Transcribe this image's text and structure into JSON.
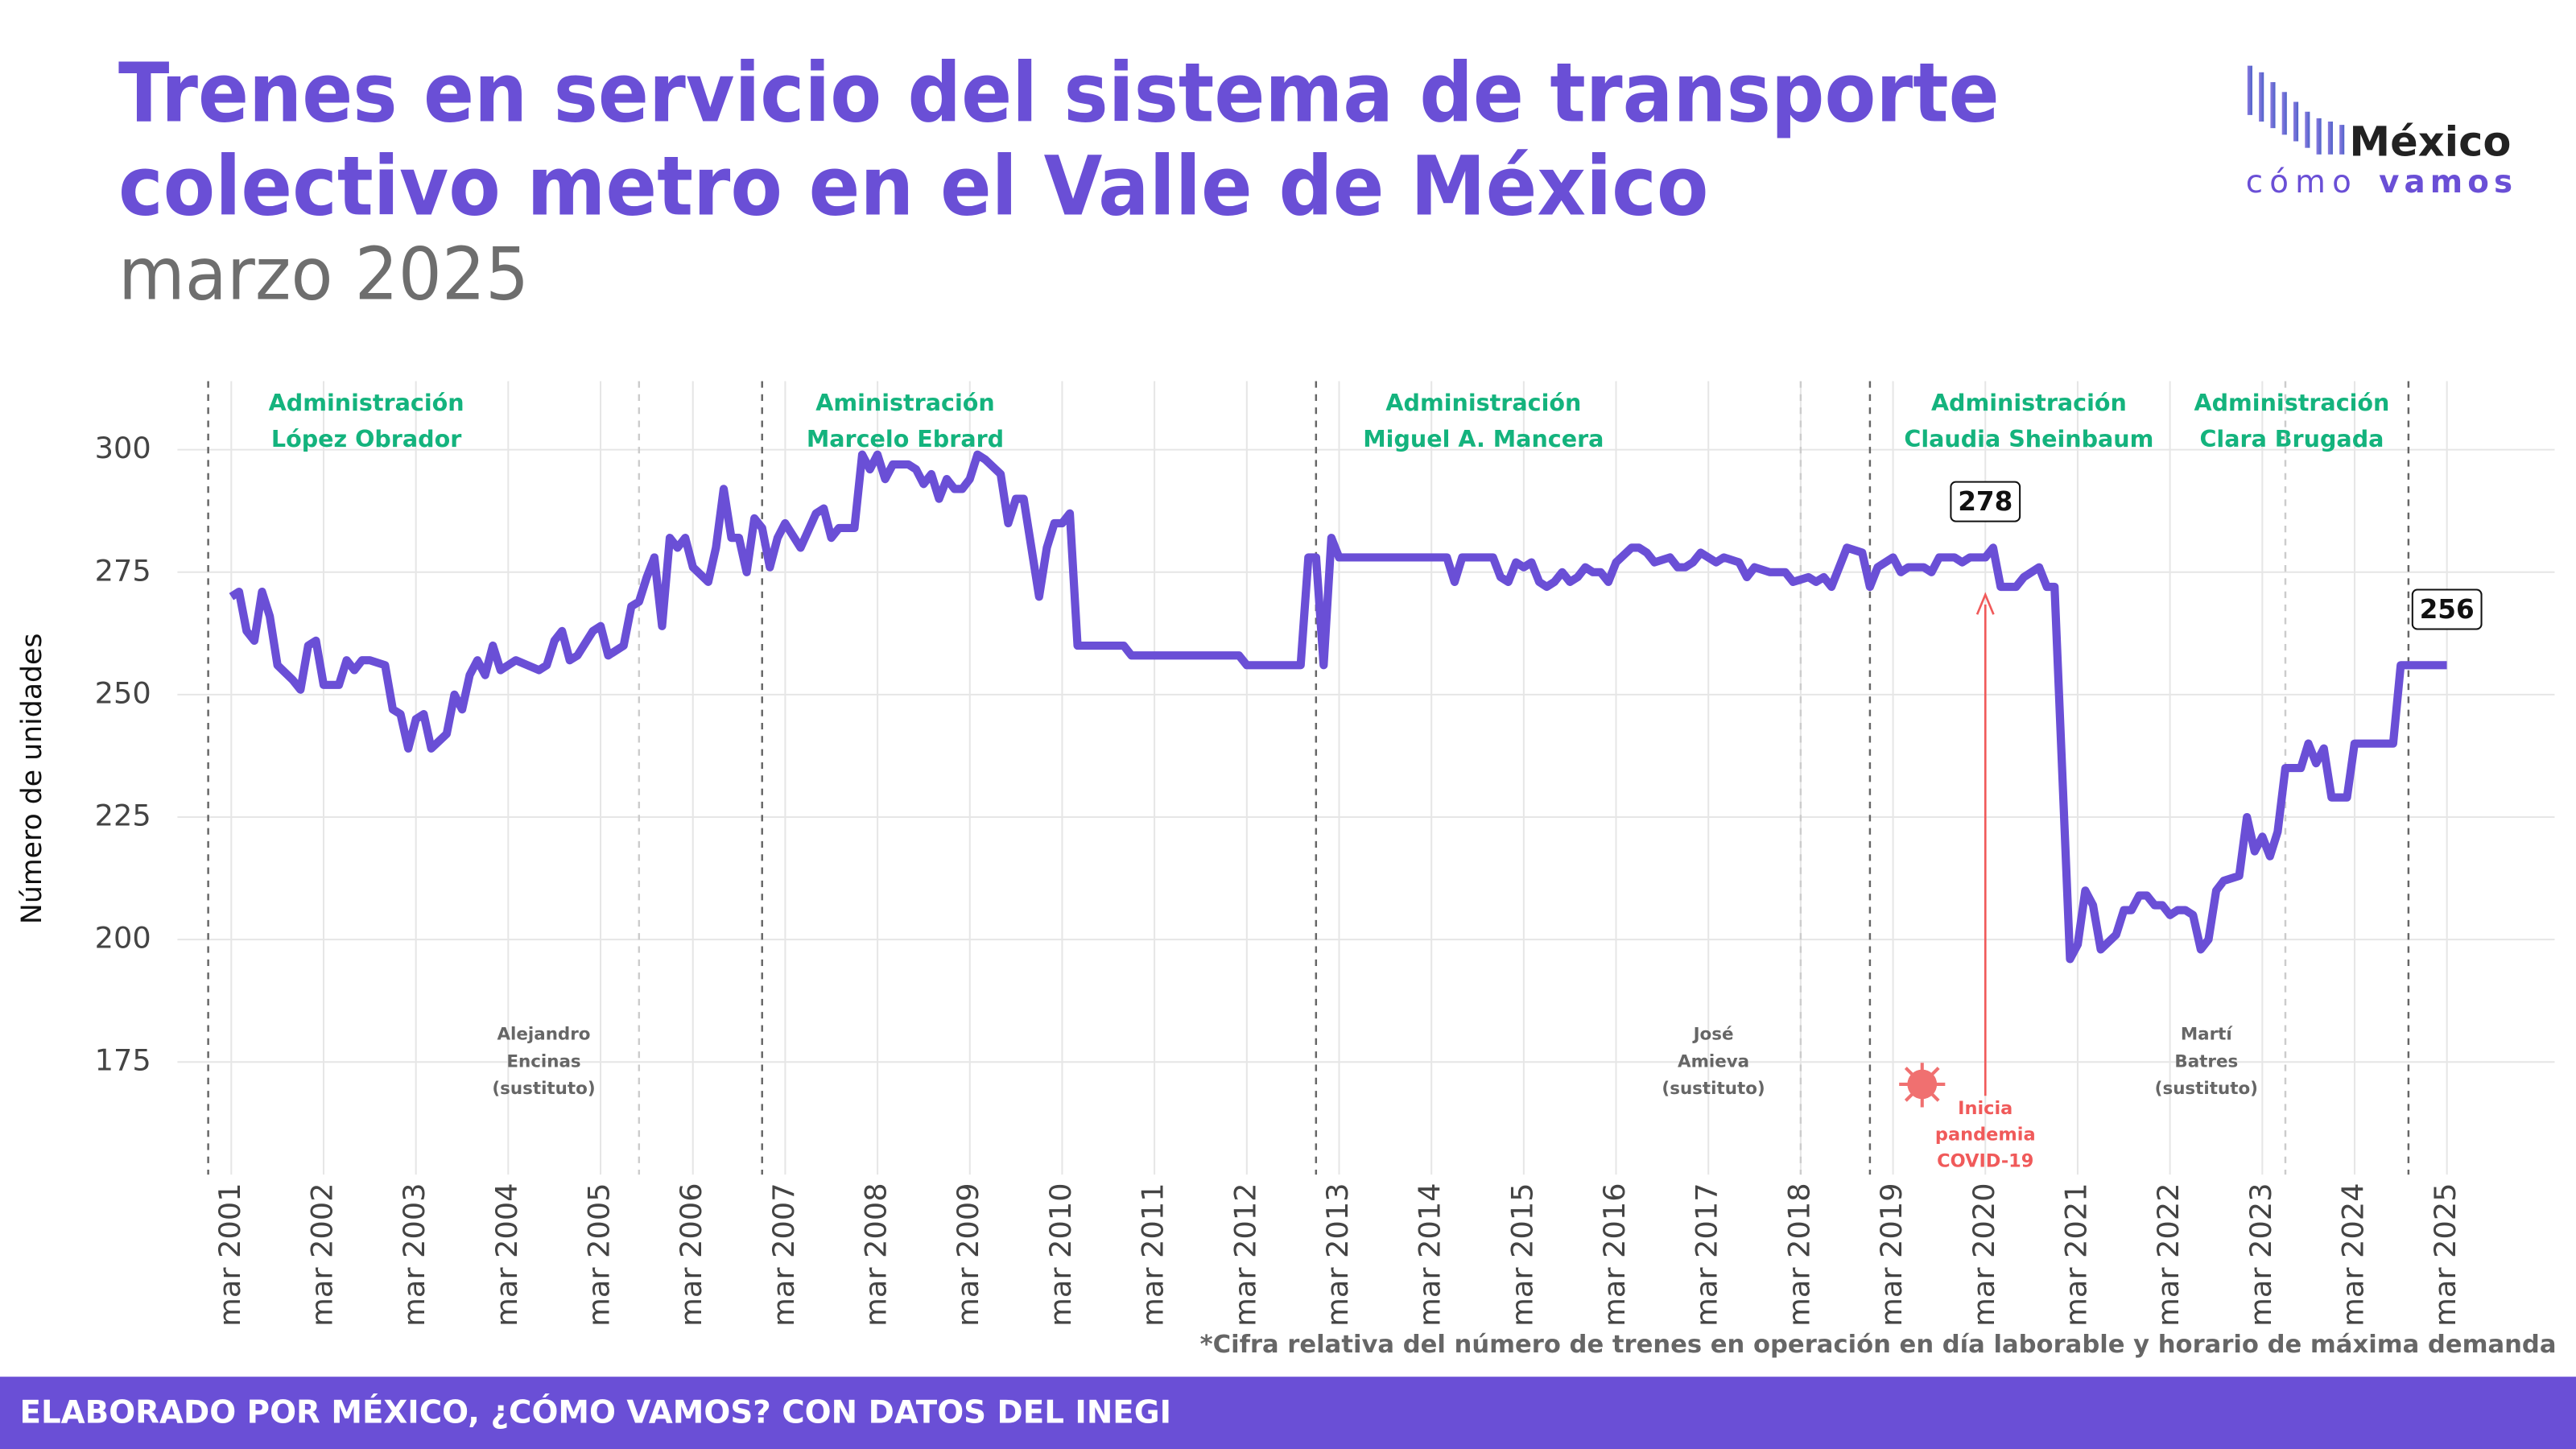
{
  "title": [
    "Trenes en servicio del sistema de transporte",
    "colectivo metro en el Valle de México"
  ],
  "subtitle": "marzo 2025",
  "logo": {
    "name": "México",
    "tag_a": "cómo",
    "tag_b": "vamos"
  },
  "note": "*Cifra relativa del número de trenes en operación en día laborable y horario de máxima demanda",
  "footer": "ELABORADO POR MÉXICO, ¿CÓMO VAMOS? CON DATOS DEL INEGI",
  "chart_data": {
    "type": "line",
    "ylabel": "Número de unidades",
    "color": "#6a4fd6",
    "grid": true,
    "xlim": [
      "2000-08",
      "2026-05"
    ],
    "ylim": [
      152,
      314
    ],
    "yticks": [
      175,
      200,
      225,
      250,
      275,
      300
    ],
    "xticks": [
      {
        "value": "2001-03",
        "label": "mar 2001"
      },
      {
        "value": "2002-03",
        "label": "mar 2002"
      },
      {
        "value": "2003-03",
        "label": "mar 2003"
      },
      {
        "value": "2004-03",
        "label": "mar 2004"
      },
      {
        "value": "2005-03",
        "label": "mar 2005"
      },
      {
        "value": "2006-03",
        "label": "mar 2006"
      },
      {
        "value": "2007-03",
        "label": "mar 2007"
      },
      {
        "value": "2008-03",
        "label": "mar 2008"
      },
      {
        "value": "2009-03",
        "label": "mar 2009"
      },
      {
        "value": "2010-03",
        "label": "mar 2010"
      },
      {
        "value": "2011-03",
        "label": "mar 2011"
      },
      {
        "value": "2012-03",
        "label": "mar 2012"
      },
      {
        "value": "2013-03",
        "label": "mar 2013"
      },
      {
        "value": "2014-03",
        "label": "mar 2014"
      },
      {
        "value": "2015-03",
        "label": "mar 2015"
      },
      {
        "value": "2016-03",
        "label": "mar 2016"
      },
      {
        "value": "2017-03",
        "label": "mar 2017"
      },
      {
        "value": "2018-03",
        "label": "mar 2018"
      },
      {
        "value": "2019-03",
        "label": "mar 2019"
      },
      {
        "value": "2020-03",
        "label": "mar 2020"
      },
      {
        "value": "2021-03",
        "label": "mar 2021"
      },
      {
        "value": "2022-03",
        "label": "mar 2022"
      },
      {
        "value": "2023-03",
        "label": "mar 2023"
      },
      {
        "value": "2024-03",
        "label": "mar 2024"
      },
      {
        "value": "2025-03",
        "label": "mar 2025"
      }
    ],
    "x": [
      "2001-03",
      "2001-04",
      "2001-05",
      "2001-06",
      "2001-07",
      "2001-08",
      "2001-09",
      "2001-11",
      "2001-12",
      "2002-01",
      "2002-02",
      "2002-03",
      "2002-05",
      "2002-06",
      "2002-07",
      "2002-08",
      "2002-09",
      "2002-11",
      "2002-12",
      "2003-01",
      "2003-02",
      "2003-03",
      "2003-04",
      "2003-05",
      "2003-07",
      "2003-08",
      "2003-09",
      "2003-10",
      "2003-11",
      "2003-12",
      "2004-01",
      "2004-02",
      "2004-04",
      "2004-07",
      "2004-08",
      "2004-09",
      "2004-10",
      "2004-11",
      "2004-12",
      "2005-02",
      "2005-03",
      "2005-04",
      "2005-06",
      "2005-07",
      "2005-08",
      "2005-09",
      "2005-10",
      "2005-11",
      "2005-12",
      "2006-01",
      "2006-02",
      "2006-03",
      "2006-05",
      "2006-06",
      "2006-07",
      "2006-08",
      "2006-09",
      "2006-10",
      "2006-11",
      "2006-12",
      "2007-01",
      "2007-02",
      "2007-03",
      "2007-05",
      "2007-07",
      "2007-08",
      "2007-09",
      "2007-10",
      "2007-12",
      "2008-01",
      "2008-02",
      "2008-03",
      "2008-04",
      "2008-05",
      "2008-07",
      "2008-08",
      "2008-09",
      "2008-10",
      "2008-11",
      "2008-12",
      "2009-01",
      "2009-02",
      "2009-03",
      "2009-04",
      "2009-05",
      "2009-07",
      "2009-08",
      "2009-09",
      "2009-10",
      "2009-12",
      "2010-01",
      "2010-02",
      "2010-03",
      "2010-04",
      "2010-05",
      "2010-11",
      "2010-12",
      "2012-02",
      "2012-03",
      "2012-10",
      "2012-11",
      "2012-12",
      "2013-01",
      "2013-02",
      "2013-03",
      "2014-05",
      "2014-06",
      "2014-07",
      "2014-11",
      "2014-12",
      "2015-01",
      "2015-02",
      "2015-03",
      "2015-04",
      "2015-05",
      "2015-06",
      "2015-07",
      "2015-08",
      "2015-09",
      "2015-10",
      "2015-11",
      "2015-12",
      "2016-01",
      "2016-02",
      "2016-03",
      "2016-05",
      "2016-06",
      "2016-07",
      "2016-08",
      "2016-10",
      "2016-11",
      "2016-12",
      "2017-01",
      "2017-02",
      "2017-04",
      "2017-05",
      "2017-07",
      "2017-08",
      "2017-09",
      "2017-11",
      "2018-01",
      "2018-02",
      "2018-04",
      "2018-05",
      "2018-06",
      "2018-07",
      "2018-08",
      "2018-09",
      "2018-11",
      "2018-12",
      "2019-01",
      "2019-02",
      "2019-03",
      "2019-04",
      "2019-05",
      "2019-07",
      "2019-08",
      "2019-09",
      "2019-11",
      "2019-12",
      "2020-01",
      "2020-03",
      "2020-04",
      "2020-05",
      "2020-07",
      "2020-08",
      "2020-10",
      "2020-11",
      "2020-12",
      "2021-02",
      "2021-03",
      "2021-04",
      "2021-05",
      "2021-06",
      "2021-08",
      "2021-09",
      "2021-10",
      "2021-11",
      "2021-12",
      "2022-01",
      "2022-02",
      "2022-03",
      "2022-04",
      "2022-05",
      "2022-06",
      "2022-07",
      "2022-08",
      "2022-09",
      "2022-10",
      "2022-12",
      "2023-01",
      "2023-02",
      "2023-03",
      "2023-04",
      "2023-05",
      "2023-06",
      "2023-08",
      "2023-09",
      "2023-10",
      "2023-11",
      "2023-12",
      "2024-02",
      "2024-03",
      "2024-08",
      "2024-09",
      "2025-03"
    ],
    "values": [
      270,
      271,
      263,
      261,
      271,
      266,
      256,
      253,
      251,
      260,
      261,
      252,
      252,
      257,
      255,
      257,
      257,
      256,
      247,
      246,
      239,
      245,
      246,
      239,
      242,
      250,
      247,
      254,
      257,
      254,
      260,
      255,
      257,
      255,
      256,
      261,
      263,
      257,
      258,
      263,
      264,
      258,
      260,
      268,
      269,
      274,
      278,
      264,
      282,
      280,
      282,
      276,
      273,
      280,
      292,
      282,
      282,
      275,
      286,
      284,
      276,
      282,
      285,
      280,
      287,
      288,
      282,
      284,
      284,
      299,
      296,
      299,
      294,
      297,
      297,
      296,
      293,
      295,
      290,
      294,
      292,
      292,
      294,
      299,
      298,
      295,
      285,
      290,
      290,
      270,
      280,
      285,
      285,
      287,
      260,
      260,
      258,
      258,
      256,
      256,
      278,
      278,
      256,
      282,
      278,
      278,
      273,
      278,
      278,
      274,
      273,
      277,
      276,
      277,
      273,
      272,
      273,
      275,
      273,
      274,
      276,
      275,
      275,
      273,
      277,
      280,
      280,
      279,
      277,
      278,
      276,
      276,
      277,
      279,
      277,
      278,
      277,
      274,
      276,
      275,
      275,
      273,
      274,
      273,
      274,
      272,
      276,
      280,
      279,
      272,
      276,
      277,
      278,
      275,
      276,
      276,
      275,
      278,
      278,
      277,
      278,
      278,
      280,
      272,
      272,
      274,
      276,
      272,
      272,
      196,
      199,
      210,
      207,
      198,
      201,
      206,
      206,
      209,
      209,
      207,
      207,
      205,
      206,
      206,
      205,
      198,
      200,
      210,
      212,
      213,
      225,
      218,
      221,
      217,
      222,
      235,
      235,
      240,
      236,
      239,
      229,
      229,
      240,
      240,
      256,
      256
    ],
    "callouts": [
      {
        "x": "2020-03",
        "value": 278
      },
      {
        "x": "2025-03",
        "value": 256
      }
    ],
    "administrations": [
      {
        "start": "2000-12",
        "lines": [
          "Administración",
          "López Obrador"
        ]
      },
      {
        "start": "2006-12",
        "lines": [
          "Aministración",
          "Marcelo Ebrard"
        ]
      },
      {
        "start": "2012-12",
        "lines": [
          "Administración",
          "Miguel A. Mancera"
        ]
      },
      {
        "start": "2018-12",
        "lines": [
          "Administración",
          "Claudia Sheinbaum"
        ]
      },
      {
        "start": "2024-10",
        "lines": [
          "Administración",
          "Clara Brugada"
        ]
      }
    ],
    "substitutes": [
      {
        "start": "2005-08",
        "lines": [
          "Alejandro",
          "Encinas",
          "(sustituto)"
        ]
      },
      {
        "start": "2018-03",
        "lines": [
          "José",
          "Amieva",
          "(sustituto)"
        ]
      },
      {
        "start": "2023-06",
        "lines": [
          "Martí",
          "Batres",
          "(sustituto)"
        ]
      }
    ],
    "event": {
      "x": "2020-03",
      "lines": [
        "Inicia",
        "pandemia",
        "COVID-19"
      ]
    }
  }
}
